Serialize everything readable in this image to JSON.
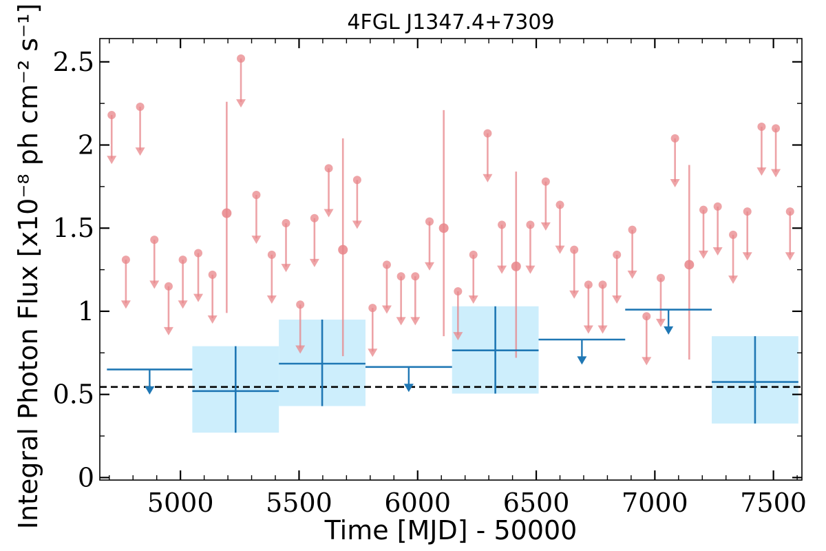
{
  "chart_data": {
    "type": "scatter",
    "title": "4FGL J1347.4+7309",
    "xlabel": "Time [MJD] - 50000",
    "ylabel": "Integral Photon Flux [x10⁻⁸ ph cm⁻² s⁻¹]",
    "xlim": [
      4660,
      7620
    ],
    "ylim": [
      -0.015,
      2.64
    ],
    "x_ticks": [
      5000,
      5500,
      6000,
      6500,
      7000,
      7500
    ],
    "y_ticks": [
      0,
      0.5,
      1,
      1.5,
      2,
      2.5
    ],
    "y_tick_labels": [
      "0",
      "0.5",
      "1",
      "1.5",
      "2",
      "2.5"
    ],
    "grid": false,
    "reference_line": {
      "y": 0.545,
      "style": "dashed",
      "color": "#000000"
    },
    "colors": {
      "short": "#e8858a",
      "long": "#1f77b4",
      "band": "#cdeefc"
    },
    "series": [
      {
        "kind": "upper_limits",
        "points": [
          {
            "x": 4710,
            "y": 2.18
          },
          {
            "x": 4770,
            "y": 1.31
          },
          {
            "x": 4830,
            "y": 2.23
          },
          {
            "x": 4890,
            "y": 1.43
          },
          {
            "x": 4950,
            "y": 1.15
          },
          {
            "x": 5010,
            "y": 1.31
          },
          {
            "x": 5075,
            "y": 1.35
          },
          {
            "x": 5135,
            "y": 1.22
          },
          {
            "x": 5255,
            "y": 2.52
          },
          {
            "x": 5320,
            "y": 1.7
          },
          {
            "x": 5385,
            "y": 1.34
          },
          {
            "x": 5445,
            "y": 1.53
          },
          {
            "x": 5505,
            "y": 1.04
          },
          {
            "x": 5565,
            "y": 1.56
          },
          {
            "x": 5625,
            "y": 1.86
          },
          {
            "x": 5745,
            "y": 1.79
          },
          {
            "x": 5810,
            "y": 1.02
          },
          {
            "x": 5870,
            "y": 1.28
          },
          {
            "x": 5930,
            "y": 1.21
          },
          {
            "x": 5990,
            "y": 1.21
          },
          {
            "x": 6050,
            "y": 1.54
          },
          {
            "x": 6170,
            "y": 1.12
          },
          {
            "x": 6235,
            "y": 1.34
          },
          {
            "x": 6295,
            "y": 2.07
          },
          {
            "x": 6355,
            "y": 1.52
          },
          {
            "x": 6475,
            "y": 1.52
          },
          {
            "x": 6540,
            "y": 1.78
          },
          {
            "x": 6600,
            "y": 1.64
          },
          {
            "x": 6660,
            "y": 1.37
          },
          {
            "x": 6720,
            "y": 1.16
          },
          {
            "x": 6780,
            "y": 1.16
          },
          {
            "x": 6840,
            "y": 1.34
          },
          {
            "x": 6905,
            "y": 1.49
          },
          {
            "x": 6965,
            "y": 0.97
          },
          {
            "x": 7025,
            "y": 1.2
          },
          {
            "x": 7085,
            "y": 2.04
          },
          {
            "x": 7205,
            "y": 1.61
          },
          {
            "x": 7265,
            "y": 1.63
          },
          {
            "x": 7330,
            "y": 1.46
          },
          {
            "x": 7390,
            "y": 1.6
          },
          {
            "x": 7450,
            "y": 2.11
          },
          {
            "x": 7510,
            "y": 2.1
          },
          {
            "x": 7570,
            "y": 1.6
          }
        ]
      },
      {
        "kind": "detections",
        "points": [
          {
            "x": 5195,
            "y": 1.59,
            "ylow": 0.99,
            "yhigh": 2.26
          },
          {
            "x": 5685,
            "y": 1.37,
            "ylow": 0.73,
            "yhigh": 2.04
          },
          {
            "x": 6110,
            "y": 1.5,
            "ylow": 0.85,
            "yhigh": 2.21
          },
          {
            "x": 6415,
            "y": 1.27,
            "ylow": 0.72,
            "yhigh": 1.84
          },
          {
            "x": 7145,
            "y": 1.28,
            "ylow": 0.71,
            "yhigh": 1.88
          }
        ]
      },
      {
        "kind": "long_bins",
        "bins": [
          {
            "x0": 4690,
            "x1": 5050,
            "y": 0.65,
            "upper_limit": true
          },
          {
            "x0": 5050,
            "x1": 5415,
            "y": 0.52,
            "ylow": 0.27,
            "yhigh": 0.79
          },
          {
            "x0": 5415,
            "x1": 5780,
            "y": 0.685,
            "ylow": 0.43,
            "yhigh": 0.95
          },
          {
            "x0": 5780,
            "x1": 6145,
            "y": 0.665,
            "upper_limit": true
          },
          {
            "x0": 6145,
            "x1": 6510,
            "y": 0.765,
            "ylow": 0.505,
            "yhigh": 1.03
          },
          {
            "x0": 6510,
            "x1": 6875,
            "y": 0.83,
            "upper_limit": true
          },
          {
            "x0": 6875,
            "x1": 7240,
            "y": 1.01,
            "upper_limit": true
          },
          {
            "x0": 7240,
            "x1": 7605,
            "y": 0.575,
            "ylow": 0.325,
            "yhigh": 0.85
          }
        ]
      }
    ]
  }
}
